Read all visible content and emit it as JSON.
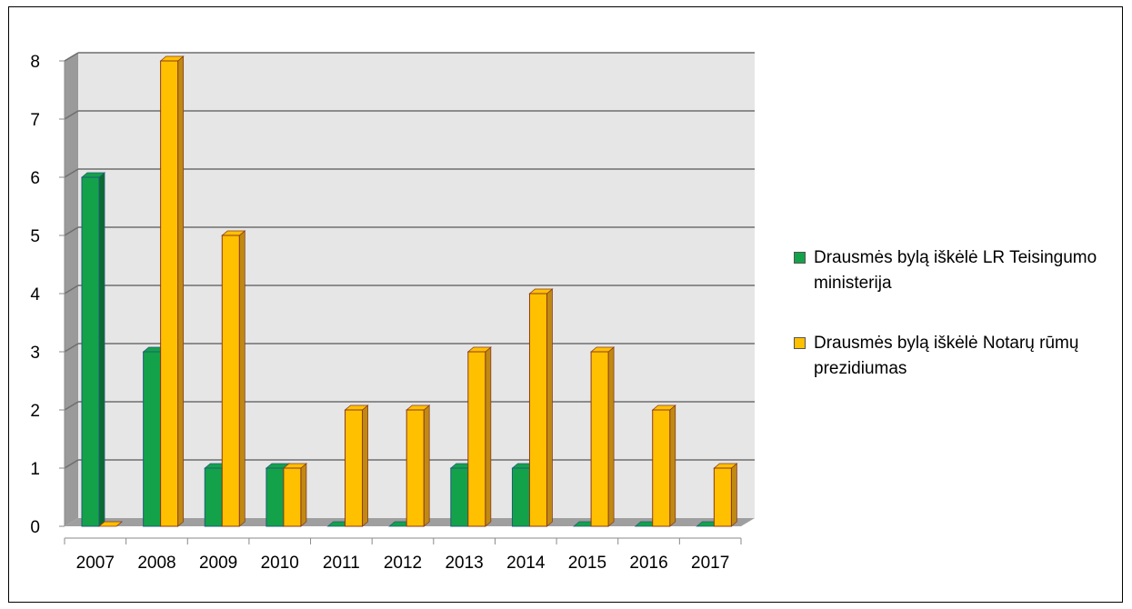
{
  "chart_data": {
    "type": "bar",
    "categories": [
      "2007",
      "2008",
      "2009",
      "2010",
      "2011",
      "2012",
      "2013",
      "2014",
      "2015",
      "2016",
      "2017"
    ],
    "series": [
      {
        "name": "Drausmės bylą iškėlė LR Teisingumo ministerija",
        "values": [
          6,
          3,
          1,
          1,
          0,
          0,
          1,
          1,
          0,
          0,
          0
        ]
      },
      {
        "name": "Drausmės bylą iškėlė Notarų rūmų prezidiumas",
        "values": [
          0,
          8,
          5,
          1,
          2,
          2,
          3,
          4,
          3,
          2,
          1
        ]
      }
    ],
    "ylim": [
      0,
      8
    ],
    "yticks": [
      "0",
      "1",
      "2",
      "3",
      "4",
      "5",
      "6",
      "7",
      "8"
    ],
    "grid": true,
    "three_d": true,
    "legend_position": "right",
    "colors": {
      "series_0_face": "#13A24A",
      "series_0_side": "#0B6B30",
      "series_0_edge": "#1F5E7A",
      "series_1_face": "#FFC000",
      "series_1_side": "#C08A12",
      "series_1_edge": "#8B3A1A",
      "plot_back": "#E6E6E6",
      "plot_wall": "#9A9A9A",
      "floor": "#9F9F9F",
      "gridline": "#6E6E6E"
    }
  },
  "legend": {
    "item_0": "Drausmės bylą iškėlė LR Teisingumo ministerija",
    "item_1": "Drausmės bylą iškėlė Notarų rūmų prezidiumas"
  }
}
